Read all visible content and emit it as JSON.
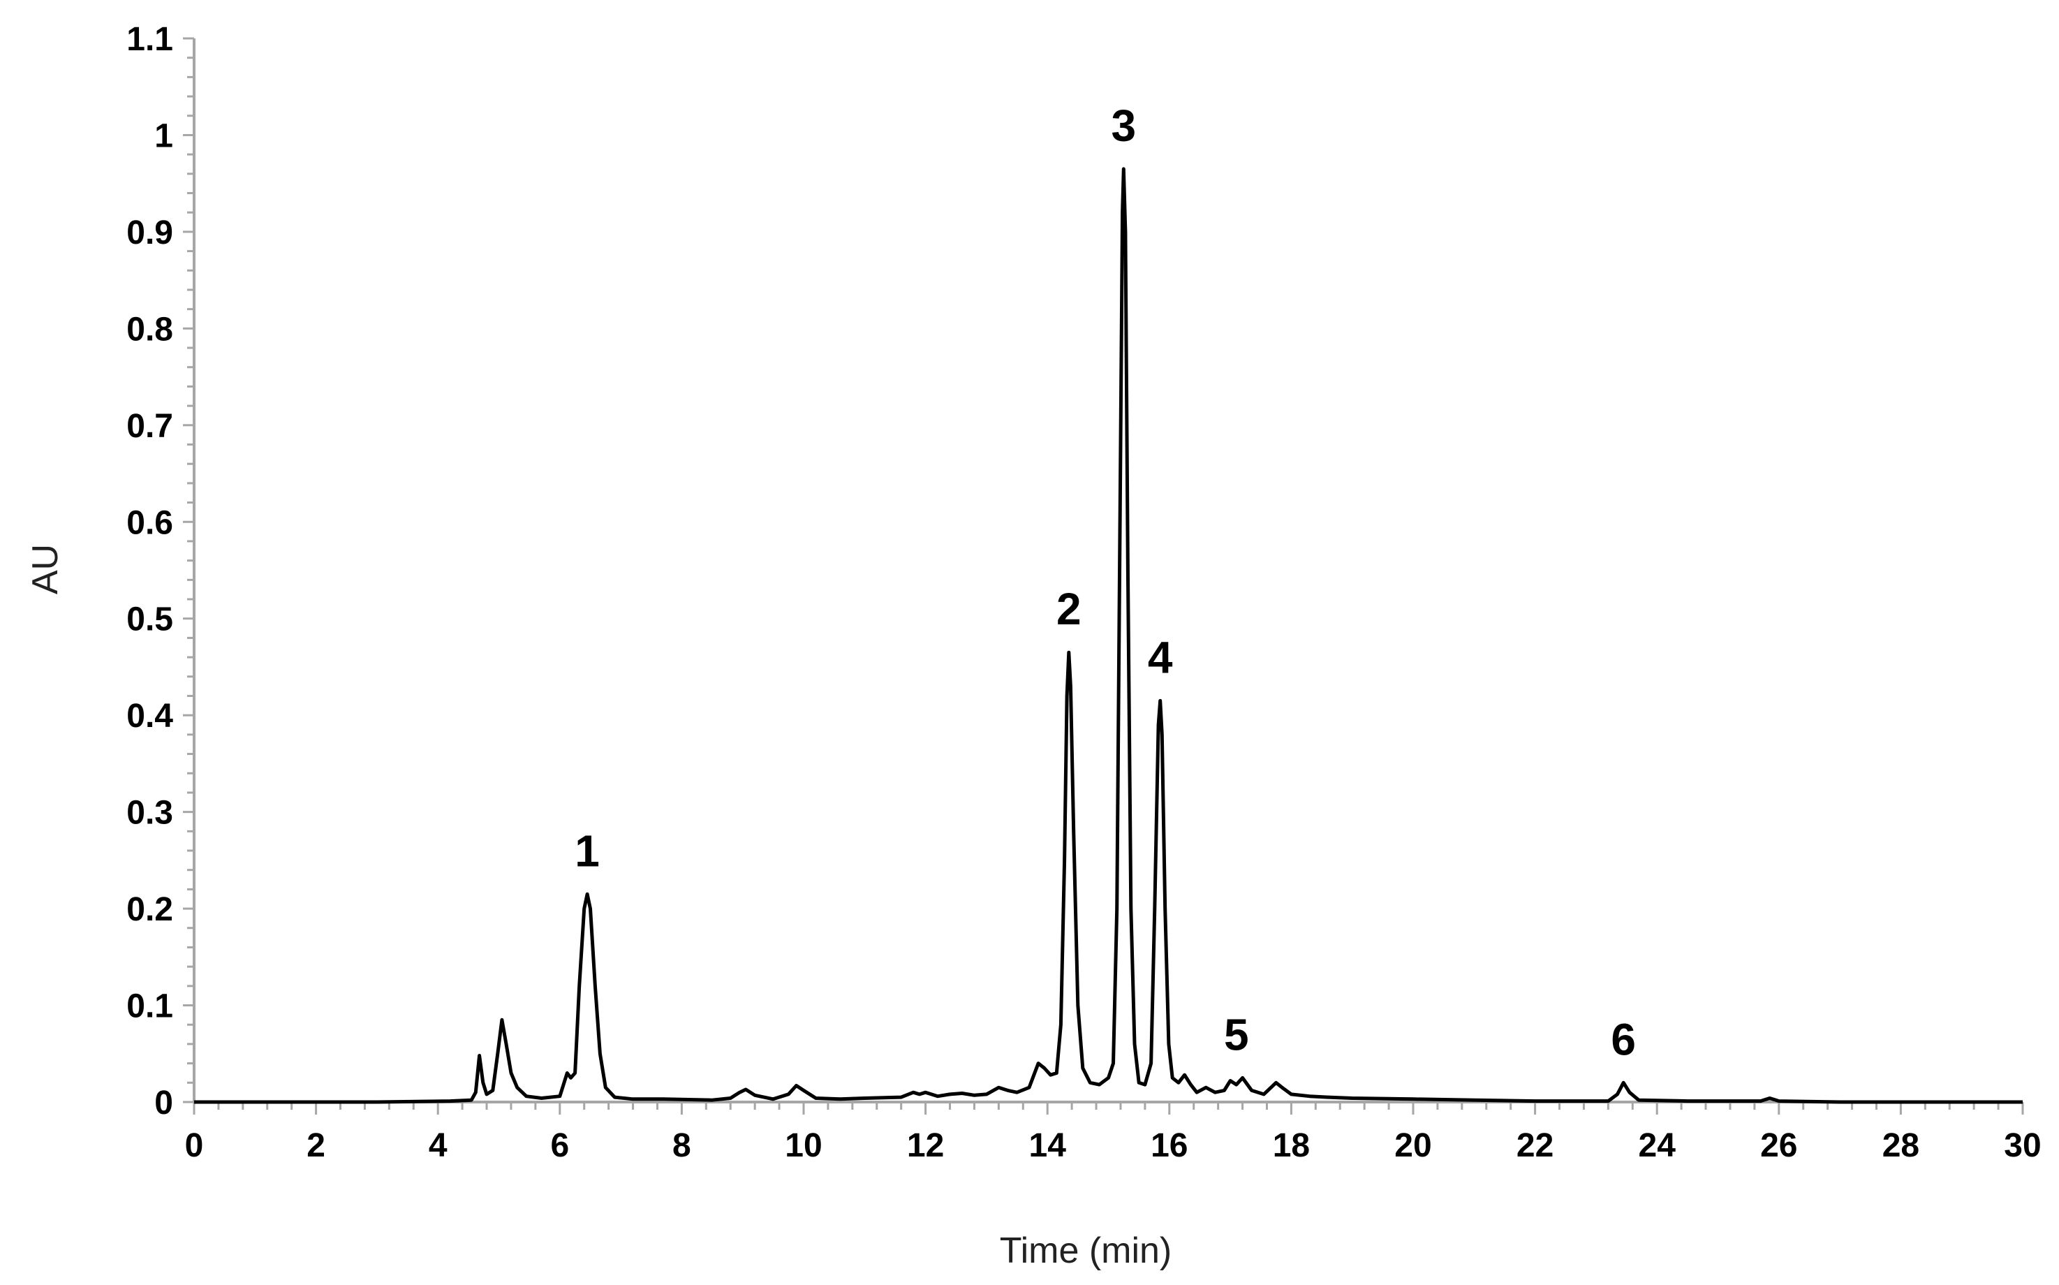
{
  "chart_data": {
    "type": "line",
    "title": "",
    "xlabel": "Time (min)",
    "ylabel": "AU",
    "xlim": [
      0,
      30
    ],
    "ylim": [
      0,
      1.1
    ],
    "x_ticks": [
      "0",
      "2",
      "4",
      "6",
      "8",
      "10",
      "12",
      "14",
      "16",
      "18",
      "20",
      "22",
      "24",
      "26",
      "28",
      "30"
    ],
    "y_ticks": [
      "0",
      "0.1",
      "0.2",
      "0.3",
      "0.4",
      "0.5",
      "0.6",
      "0.7",
      "0.8",
      "0.9",
      "1",
      "1.1"
    ],
    "grid": false,
    "legend": "none",
    "line_color": "#000000",
    "annotations": [
      {
        "text": "1",
        "x": 6.45,
        "y": 0.215
      },
      {
        "text": "2",
        "x": 14.35,
        "y": 0.465
      },
      {
        "text": "3",
        "x": 15.25,
        "y": 0.965
      },
      {
        "text": "4",
        "x": 15.85,
        "y": 0.415
      },
      {
        "text": "5",
        "x": 17.1,
        "y": 0.025
      },
      {
        "text": "6",
        "x": 23.45,
        "y": 0.02
      }
    ],
    "series": [
      {
        "points": [
          [
            0,
            0.0
          ],
          [
            3,
            0.0
          ],
          [
            4.2,
            0.001
          ],
          [
            4.55,
            0.002
          ],
          [
            4.62,
            0.01
          ],
          [
            4.68,
            0.048
          ],
          [
            4.74,
            0.02
          ],
          [
            4.8,
            0.008
          ],
          [
            4.9,
            0.012
          ],
          [
            4.98,
            0.05
          ],
          [
            5.05,
            0.085
          ],
          [
            5.12,
            0.06
          ],
          [
            5.2,
            0.03
          ],
          [
            5.3,
            0.015
          ],
          [
            5.45,
            0.006
          ],
          [
            5.7,
            0.004
          ],
          [
            6.0,
            0.006
          ],
          [
            6.12,
            0.03
          ],
          [
            6.18,
            0.025
          ],
          [
            6.25,
            0.03
          ],
          [
            6.32,
            0.12
          ],
          [
            6.4,
            0.2
          ],
          [
            6.45,
            0.215
          ],
          [
            6.5,
            0.2
          ],
          [
            6.58,
            0.12
          ],
          [
            6.66,
            0.05
          ],
          [
            6.75,
            0.015
          ],
          [
            6.9,
            0.005
          ],
          [
            7.2,
            0.003
          ],
          [
            7.7,
            0.003
          ],
          [
            8.5,
            0.002
          ],
          [
            8.8,
            0.004
          ],
          [
            8.95,
            0.01
          ],
          [
            9.05,
            0.013
          ],
          [
            9.2,
            0.007
          ],
          [
            9.5,
            0.003
          ],
          [
            9.75,
            0.008
          ],
          [
            9.88,
            0.017
          ],
          [
            10.0,
            0.012
          ],
          [
            10.2,
            0.004
          ],
          [
            10.6,
            0.003
          ],
          [
            11.0,
            0.004
          ],
          [
            11.6,
            0.005
          ],
          [
            11.8,
            0.01
          ],
          [
            11.9,
            0.008
          ],
          [
            12.0,
            0.01
          ],
          [
            12.2,
            0.006
          ],
          [
            12.4,
            0.008
          ],
          [
            12.6,
            0.009
          ],
          [
            12.8,
            0.007
          ],
          [
            13.0,
            0.008
          ],
          [
            13.2,
            0.015
          ],
          [
            13.35,
            0.012
          ],
          [
            13.5,
            0.01
          ],
          [
            13.7,
            0.015
          ],
          [
            13.85,
            0.04
          ],
          [
            13.95,
            0.035
          ],
          [
            14.05,
            0.028
          ],
          [
            14.15,
            0.03
          ],
          [
            14.22,
            0.08
          ],
          [
            14.28,
            0.25
          ],
          [
            14.32,
            0.42
          ],
          [
            14.35,
            0.465
          ],
          [
            14.38,
            0.43
          ],
          [
            14.43,
            0.28
          ],
          [
            14.5,
            0.1
          ],
          [
            14.58,
            0.035
          ],
          [
            14.7,
            0.02
          ],
          [
            14.85,
            0.018
          ],
          [
            15.0,
            0.025
          ],
          [
            15.08,
            0.04
          ],
          [
            15.14,
            0.2
          ],
          [
            15.19,
            0.6
          ],
          [
            15.23,
            0.92
          ],
          [
            15.25,
            0.965
          ],
          [
            15.28,
            0.9
          ],
          [
            15.32,
            0.55
          ],
          [
            15.37,
            0.2
          ],
          [
            15.43,
            0.06
          ],
          [
            15.5,
            0.02
          ],
          [
            15.6,
            0.018
          ],
          [
            15.7,
            0.04
          ],
          [
            15.76,
            0.2
          ],
          [
            15.82,
            0.39
          ],
          [
            15.85,
            0.415
          ],
          [
            15.88,
            0.38
          ],
          [
            15.93,
            0.2
          ],
          [
            15.99,
            0.06
          ],
          [
            16.05,
            0.025
          ],
          [
            16.15,
            0.02
          ],
          [
            16.25,
            0.028
          ],
          [
            16.35,
            0.018
          ],
          [
            16.45,
            0.01
          ],
          [
            16.6,
            0.015
          ],
          [
            16.75,
            0.01
          ],
          [
            16.9,
            0.012
          ],
          [
            17.0,
            0.022
          ],
          [
            17.1,
            0.018
          ],
          [
            17.2,
            0.025
          ],
          [
            17.35,
            0.012
          ],
          [
            17.55,
            0.008
          ],
          [
            17.75,
            0.02
          ],
          [
            17.85,
            0.015
          ],
          [
            18.0,
            0.008
          ],
          [
            18.3,
            0.006
          ],
          [
            18.6,
            0.005
          ],
          [
            19.0,
            0.004
          ],
          [
            20.0,
            0.003
          ],
          [
            21.0,
            0.002
          ],
          [
            22.0,
            0.001
          ],
          [
            23.2,
            0.001
          ],
          [
            23.35,
            0.008
          ],
          [
            23.45,
            0.02
          ],
          [
            23.55,
            0.01
          ],
          [
            23.7,
            0.002
          ],
          [
            24.5,
            0.001
          ],
          [
            25.7,
            0.001
          ],
          [
            25.85,
            0.004
          ],
          [
            26.0,
            0.001
          ],
          [
            27,
            0.0
          ],
          [
            30,
            0.0
          ]
        ]
      }
    ]
  }
}
